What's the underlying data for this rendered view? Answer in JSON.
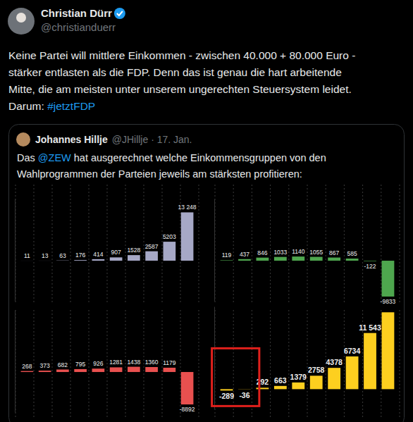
{
  "tweet": {
    "author": "Christian Dürr",
    "handle": "@christianduerr",
    "lines": [
      [
        {
          "text": "Keine Partei will mittlere Einkommen - zwischen 40.000 + 80.000 Euro -"
        }
      ],
      [
        {
          "text": "stärker entlasten als die FDP. Denn das ist genau die hart arbeitende"
        }
      ],
      [
        {
          "text": "Mitte, die am meisten unter unserem ungerechten Steuersystem leidet."
        }
      ],
      [
        {
          "text": "Darum: "
        },
        {
          "text": "#jetztFDP",
          "link": true
        }
      ]
    ]
  },
  "quoted_tweet": {
    "author": "Johannes Hillje",
    "meta": "@JHillje · 17. Jan.",
    "lines": [
      [
        {
          "text": "Das "
        },
        {
          "text": "@ZEW",
          "link": true
        },
        {
          "text": " hat ausgerechnet welche Einkommensgruppen von den"
        }
      ],
      [
        {
          "text": "Wahlprogrammen der Parteien jeweils am stärksten profitieren:"
        }
      ]
    ]
  },
  "chart_data": [
    {
      "type": "bar",
      "categories": [
        null,
        null,
        null,
        null,
        null,
        null,
        null,
        null,
        null,
        null
      ],
      "values": [
        11,
        13,
        63,
        176,
        414,
        907,
        1528,
        2587,
        5203,
        13248
      ],
      "value_labels": [
        "11",
        "13",
        "63",
        "176",
        "414",
        "907",
        "1528",
        "2587",
        "5203",
        "13 248"
      ],
      "color": "#a6a8c6",
      "ylim": [
        -11000,
        17000
      ],
      "yticks": [
        0
      ],
      "data_labels": true,
      "tick_labels": false
    },
    {
      "type": "bar",
      "categories": [
        null,
        null,
        null,
        null,
        null,
        null,
        null,
        null,
        null,
        null
      ],
      "values": [
        119,
        437,
        846,
        1033,
        1140,
        1055,
        867,
        585,
        -122,
        -9833
      ],
      "color": "#4ea64e",
      "ylim": [
        -11000,
        17000
      ],
      "yticks": [
        0
      ],
      "data_labels": true,
      "tick_labels": false
    },
    {
      "type": "bar",
      "categories": [
        null,
        null,
        null,
        null,
        null,
        null,
        null,
        null,
        null,
        null
      ],
      "values": [
        268,
        373,
        682,
        795,
        926,
        1281,
        1438,
        1360,
        1179,
        -8892
      ],
      "color": "#e8504f",
      "ylim": [
        -11000,
        17000
      ],
      "yticks": [
        0
      ],
      "data_labels": true,
      "tick_labels": false
    },
    {
      "type": "bar",
      "categories": [
        null,
        null,
        null,
        null,
        null,
        null,
        null,
        null,
        null,
        null
      ],
      "values": [
        -289,
        -36,
        292,
        663,
        1379,
        2758,
        4378,
        6734,
        11543,
        15800
      ],
      "value_labels": [
        "-289",
        "-36",
        "292",
        "663",
        "1379",
        "2758",
        "4378",
        "6734",
        "11 543",
        null
      ],
      "color": "#fdcf1f",
      "ylim": [
        -4000,
        17000
      ],
      "yticks": [
        0
      ],
      "data_labels": true,
      "tick_labels": false
    }
  ]
}
